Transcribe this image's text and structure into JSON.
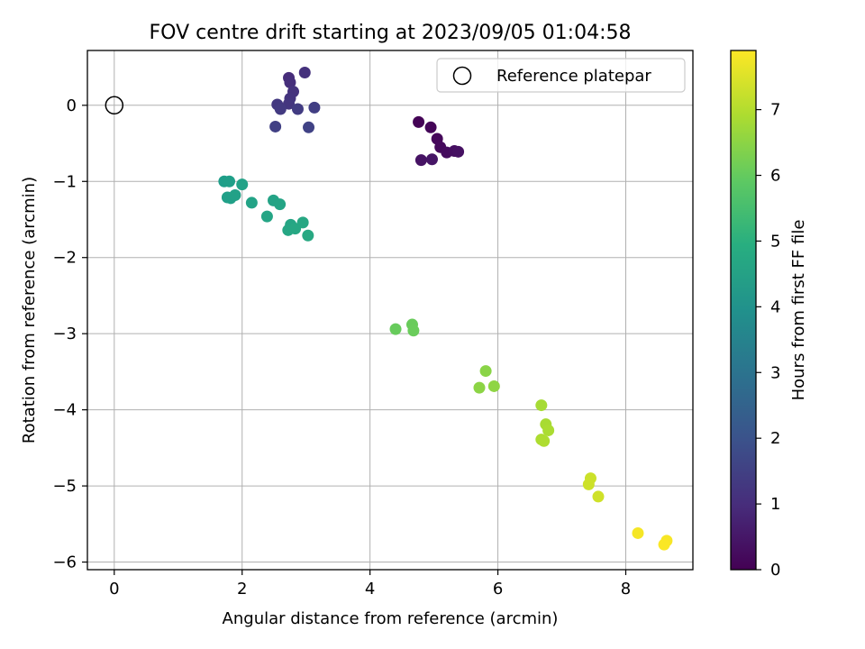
{
  "chart_data": {
    "type": "scatter",
    "title": "FOV centre drift starting at 2023/09/05 01:04:58",
    "xlabel": "Angular distance from reference (arcmin)",
    "ylabel": "Rotation from reference (arcmin)",
    "xlim": [
      -0.42,
      9.05
    ],
    "ylim": [
      -6.1,
      0.72
    ],
    "xticks": [
      0,
      2,
      4,
      6,
      8
    ],
    "yticks": [
      0,
      -1,
      -2,
      -3,
      -4,
      -5,
      -6
    ],
    "grid": true,
    "legend": {
      "position": "top-right",
      "entries": [
        "Reference platepar"
      ]
    },
    "reference_point": {
      "x": 0,
      "y": 0,
      "label": "Reference platepar"
    },
    "colorbar": {
      "label": "Hours from first FF file",
      "range": [
        0,
        7.9
      ],
      "ticks": [
        0,
        1,
        2,
        3,
        4,
        5,
        6,
        7
      ],
      "colormap": "viridis"
    },
    "points": [
      {
        "x": 4.76,
        "y": -0.22,
        "h": 0.05
      },
      {
        "x": 4.95,
        "y": -0.29,
        "h": 0.1
      },
      {
        "x": 5.05,
        "y": -0.44,
        "h": 0.15
      },
      {
        "x": 5.1,
        "y": -0.55,
        "h": 0.2
      },
      {
        "x": 5.2,
        "y": -0.62,
        "h": 0.25
      },
      {
        "x": 5.32,
        "y": -0.6,
        "h": 0.3
      },
      {
        "x": 5.38,
        "y": -0.61,
        "h": 0.35
      },
      {
        "x": 4.8,
        "y": -0.72,
        "h": 0.4
      },
      {
        "x": 4.97,
        "y": -0.71,
        "h": 0.45
      },
      {
        "x": 2.73,
        "y": 0.36,
        "h": 1.0
      },
      {
        "x": 2.75,
        "y": 0.3,
        "h": 1.05
      },
      {
        "x": 2.98,
        "y": 0.43,
        "h": 1.1
      },
      {
        "x": 2.8,
        "y": 0.18,
        "h": 1.15
      },
      {
        "x": 2.75,
        "y": 0.09,
        "h": 1.2
      },
      {
        "x": 2.73,
        "y": 0.02,
        "h": 1.25
      },
      {
        "x": 2.55,
        "y": 0.01,
        "h": 1.3
      },
      {
        "x": 2.6,
        "y": -0.05,
        "h": 1.35
      },
      {
        "x": 2.87,
        "y": -0.05,
        "h": 1.4
      },
      {
        "x": 3.13,
        "y": -0.03,
        "h": 1.45
      },
      {
        "x": 2.52,
        "y": -0.28,
        "h": 1.5
      },
      {
        "x": 3.04,
        "y": -0.29,
        "h": 1.55
      },
      {
        "x": 1.72,
        "y": -1.0,
        "h": 4.4
      },
      {
        "x": 1.8,
        "y": -1.0,
        "h": 4.42
      },
      {
        "x": 1.77,
        "y": -1.21,
        "h": 4.45
      },
      {
        "x": 1.82,
        "y": -1.22,
        "h": 4.47
      },
      {
        "x": 1.89,
        "y": -1.18,
        "h": 4.5
      },
      {
        "x": 2.0,
        "y": -1.04,
        "h": 4.52
      },
      {
        "x": 2.15,
        "y": -1.28,
        "h": 4.55
      },
      {
        "x": 2.49,
        "y": -1.25,
        "h": 4.58
      },
      {
        "x": 2.59,
        "y": -1.3,
        "h": 4.6
      },
      {
        "x": 2.39,
        "y": -1.46,
        "h": 4.62
      },
      {
        "x": 2.76,
        "y": -1.57,
        "h": 4.65
      },
      {
        "x": 2.72,
        "y": -1.64,
        "h": 4.67
      },
      {
        "x": 2.83,
        "y": -1.62,
        "h": 4.7
      },
      {
        "x": 2.95,
        "y": -1.54,
        "h": 4.72
      },
      {
        "x": 3.03,
        "y": -1.71,
        "h": 4.75
      },
      {
        "x": 4.4,
        "y": -2.94,
        "h": 6.05
      },
      {
        "x": 4.66,
        "y": -2.88,
        "h": 6.08
      },
      {
        "x": 4.68,
        "y": -2.96,
        "h": 6.1
      },
      {
        "x": 5.81,
        "y": -3.49,
        "h": 6.5
      },
      {
        "x": 5.71,
        "y": -3.71,
        "h": 6.53
      },
      {
        "x": 5.94,
        "y": -3.69,
        "h": 6.56
      },
      {
        "x": 6.68,
        "y": -3.94,
        "h": 6.85
      },
      {
        "x": 6.75,
        "y": -4.19,
        "h": 6.88
      },
      {
        "x": 6.79,
        "y": -4.27,
        "h": 6.91
      },
      {
        "x": 6.68,
        "y": -4.39,
        "h": 6.93
      },
      {
        "x": 6.72,
        "y": -4.41,
        "h": 6.95
      },
      {
        "x": 7.45,
        "y": -4.9,
        "h": 7.3
      },
      {
        "x": 7.42,
        "y": -4.98,
        "h": 7.32
      },
      {
        "x": 7.57,
        "y": -5.14,
        "h": 7.35
      },
      {
        "x": 8.19,
        "y": -5.62,
        "h": 7.8
      },
      {
        "x": 8.64,
        "y": -5.72,
        "h": 7.83
      },
      {
        "x": 8.6,
        "y": -5.77,
        "h": 7.86
      }
    ]
  }
}
